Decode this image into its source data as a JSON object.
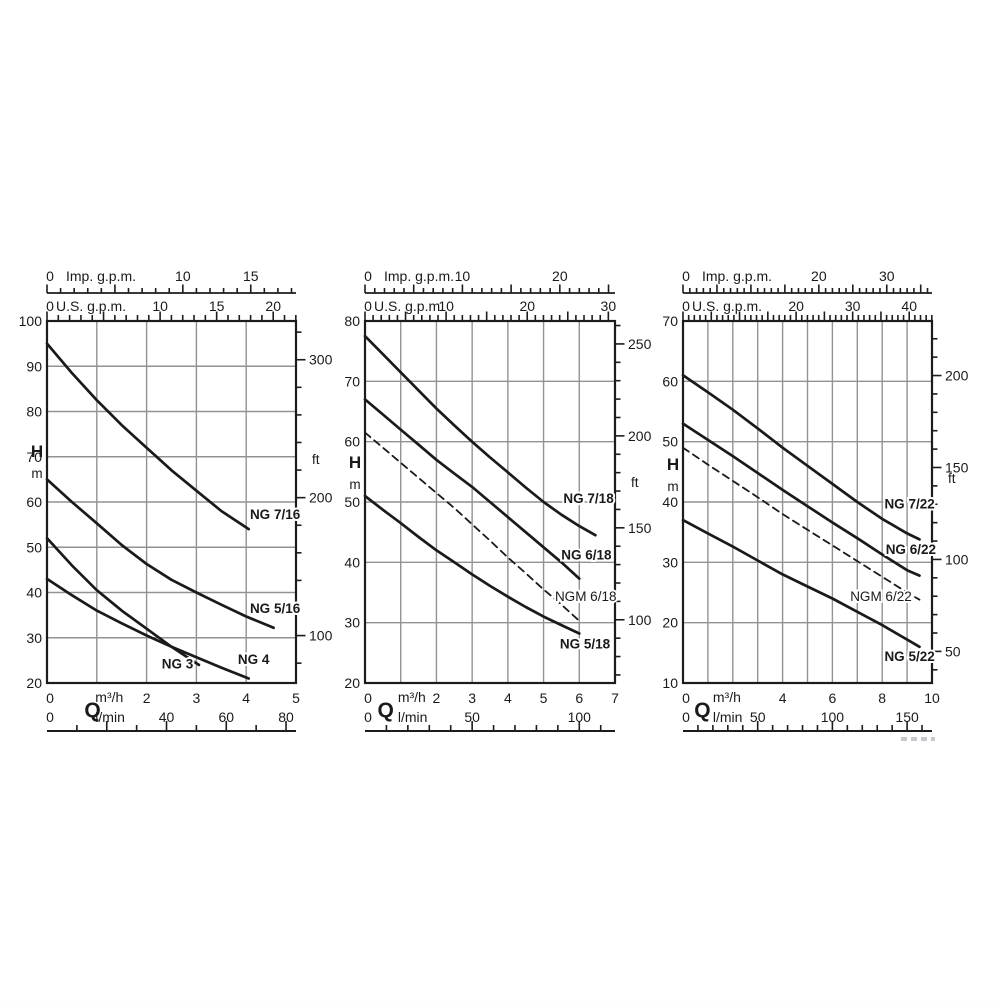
{
  "colors": {
    "curve": "#1a1a1a",
    "grid": "#929292",
    "axis": "#1c1c1c",
    "text": "#1a1a1a"
  },
  "chart_data": [
    {
      "type": "line",
      "title": "",
      "x_axis": {
        "label": "Q",
        "unit": "m³/h",
        "min": 0,
        "max": 5,
        "grid_step": 1,
        "tick_labels": [
          0,
          2,
          3,
          4,
          5
        ]
      },
      "x_axis_lmin": {
        "unit": "l/min",
        "tick_labels": [
          0,
          40,
          60,
          80
        ],
        "minor_step": 10,
        "major_step": 20
      },
      "x_axis_imp": {
        "title": "Imp. g.p.m.",
        "zero": "0",
        "tick_labels": [
          10,
          15
        ],
        "minor_step": 1,
        "major_step": 5
      },
      "x_axis_us": {
        "title": "U.S. g.p.m.",
        "zero": "0",
        "tick_labels": [
          10,
          15,
          20
        ],
        "minor_step": 1,
        "major_step": 5
      },
      "y_axis": {
        "label": "H",
        "unit": "m",
        "min": 20,
        "max": 100,
        "step": 10
      },
      "y_axis_ft": {
        "unit": "ft",
        "tick_labels": [
          300,
          200,
          100
        ],
        "minor_step": 20
      },
      "series": [
        {
          "name": "NG 7/16",
          "dashed": false,
          "label_at": [
            4.58,
            57.2
          ],
          "points": [
            [
              0,
              95
            ],
            [
              0.5,
              88.5
            ],
            [
              1,
              82.5
            ],
            [
              1.5,
              77
            ],
            [
              2,
              72
            ],
            [
              2.5,
              67
            ],
            [
              3,
              62.5
            ],
            [
              3.5,
              58
            ],
            [
              4.05,
              54
            ]
          ]
        },
        {
          "name": "NG 5/16",
          "dashed": false,
          "label_at": [
            4.58,
            36.5
          ],
          "points": [
            [
              0,
              65
            ],
            [
              0.5,
              60
            ],
            [
              1,
              55.3
            ],
            [
              1.5,
              50.5
            ],
            [
              2,
              46.3
            ],
            [
              2.5,
              42.8
            ],
            [
              3,
              40
            ],
            [
              3.5,
              37.3
            ],
            [
              4,
              34.7
            ],
            [
              4.55,
              32.2
            ]
          ]
        },
        {
          "name": "NG 3",
          "dashed": false,
          "label_at": [
            2.62,
            24.2
          ],
          "points": [
            [
              0,
              52
            ],
            [
              0.5,
              46
            ],
            [
              1,
              40.5
            ],
            [
              1.5,
              36
            ],
            [
              2,
              32
            ],
            [
              2.5,
              28
            ],
            [
              3.05,
              24
            ]
          ]
        },
        {
          "name": "NG 4",
          "dashed": false,
          "label_at": [
            4.15,
            25.2
          ],
          "points": [
            [
              0,
              43
            ],
            [
              0.5,
              39.4
            ],
            [
              1,
              36
            ],
            [
              1.5,
              33.2
            ],
            [
              2,
              30.5
            ],
            [
              2.5,
              28
            ],
            [
              3,
              25.7
            ],
            [
              3.5,
              23.4
            ],
            [
              4.05,
              21
            ]
          ]
        }
      ]
    },
    {
      "type": "line",
      "title": "",
      "x_axis": {
        "label": "Q",
        "unit": "m³/h",
        "min": 0,
        "max": 7,
        "grid_step": 1,
        "tick_labels": [
          0,
          2,
          3,
          4,
          5,
          6,
          7
        ]
      },
      "x_axis_lmin": {
        "unit": "l/min",
        "tick_labels": [
          0,
          50,
          100
        ],
        "minor_step": 10,
        "major_step": 50
      },
      "x_axis_imp": {
        "title": "Imp. g.p.m.",
        "zero": "0",
        "tick_labels": [
          10,
          20
        ],
        "minor_step": 1,
        "major_step": 5
      },
      "x_axis_us": {
        "title": "U.S. g.p.m.",
        "zero": "0",
        "tick_labels": [
          10,
          20,
          30
        ],
        "minor_step": 1,
        "major_step": 5
      },
      "y_axis": {
        "label": "H",
        "unit": "m",
        "min": 20,
        "max": 80,
        "step": 10
      },
      "y_axis_ft": {
        "unit": "ft",
        "tick_labels": [
          250,
          200,
          150,
          100
        ],
        "minor_step": 10
      },
      "series": [
        {
          "name": "NG 7/18",
          "dashed": false,
          "label_at": [
            6.26,
            50.6
          ],
          "points": [
            [
              0,
              77.5
            ],
            [
              0.5,
              74.5
            ],
            [
              1,
              71.5
            ],
            [
              1.5,
              68.5
            ],
            [
              2,
              65.5
            ],
            [
              2.5,
              62.7
            ],
            [
              3,
              60
            ],
            [
              3.5,
              57.4
            ],
            [
              4,
              54.9
            ],
            [
              4.5,
              52.4
            ],
            [
              5,
              50
            ],
            [
              5.5,
              47.9
            ],
            [
              6,
              46
            ],
            [
              6.45,
              44.5
            ]
          ]
        },
        {
          "name": "NG 6/18",
          "dashed": false,
          "label_at": [
            6.2,
            41.2
          ],
          "points": [
            [
              0,
              67
            ],
            [
              0.5,
              64.5
            ],
            [
              1,
              62
            ],
            [
              1.5,
              59.5
            ],
            [
              2,
              57
            ],
            [
              2.5,
              54.7
            ],
            [
              3,
              52.5
            ],
            [
              3.5,
              50
            ],
            [
              4,
              47.5
            ],
            [
              4.5,
              45
            ],
            [
              5,
              42.5
            ],
            [
              5.5,
              40
            ],
            [
              6,
              37.3
            ]
          ]
        },
        {
          "name": "NGM 6/18",
          "dashed": true,
          "label_at": [
            6.18,
            34.3
          ],
          "points": [
            [
              0,
              61.5
            ],
            [
              0.5,
              59
            ],
            [
              1,
              56.5
            ],
            [
              1.5,
              54
            ],
            [
              2,
              51.5
            ],
            [
              2.5,
              49
            ],
            [
              3,
              46.3
            ],
            [
              3.5,
              43.6
            ],
            [
              4,
              40.8
            ],
            [
              4.5,
              38.2
            ],
            [
              5,
              35.5
            ],
            [
              5.5,
              33
            ],
            [
              6,
              30.3
            ]
          ]
        },
        {
          "name": "NG 5/18",
          "dashed": false,
          "label_at": [
            6.16,
            26.5
          ],
          "points": [
            [
              0,
              51
            ],
            [
              0.5,
              48.7
            ],
            [
              1,
              46.5
            ],
            [
              1.5,
              44.2
            ],
            [
              2,
              42
            ],
            [
              2.5,
              40
            ],
            [
              3,
              38
            ],
            [
              3.5,
              36.1
            ],
            [
              4,
              34.3
            ],
            [
              4.5,
              32.6
            ],
            [
              5,
              31
            ],
            [
              5.5,
              29.6
            ],
            [
              6,
              28.2
            ]
          ]
        }
      ]
    },
    {
      "type": "line",
      "title": "",
      "x_axis": {
        "label": "Q",
        "unit": "m³/h",
        "min": 0,
        "max": 10,
        "grid_step": 1,
        "tick_labels": [
          0,
          4,
          6,
          8,
          10
        ]
      },
      "x_axis_lmin": {
        "unit": "l/min",
        "tick_labels": [
          0,
          50,
          100,
          150
        ],
        "minor_step": 10,
        "major_step": 50
      },
      "x_axis_imp": {
        "title": "Imp. g.p.m.",
        "zero": "0",
        "tick_labels": [
          20,
          30
        ],
        "minor_step": 1,
        "major_step": 5
      },
      "x_axis_us": {
        "title": "U.S. g.p.m.",
        "zero": "0",
        "tick_labels": [
          20,
          30,
          40
        ],
        "minor_step": 1,
        "major_step": 5
      },
      "y_axis": {
        "label": "H",
        "unit": "m",
        "min": 10,
        "max": 70,
        "step": 10
      },
      "y_axis_ft": {
        "unit": "ft",
        "tick_labels": [
          200,
          150,
          100,
          50
        ],
        "minor_step": 10
      },
      "series": [
        {
          "name": "NG 7/22",
          "dashed": false,
          "label_at": [
            9.1,
            39.7
          ],
          "points": [
            [
              0,
              61
            ],
            [
              1,
              58.2
            ],
            [
              2,
              55.3
            ],
            [
              3,
              52.2
            ],
            [
              4,
              49
            ],
            [
              5,
              46
            ],
            [
              6,
              43
            ],
            [
              7,
              40
            ],
            [
              8,
              37.2
            ],
            [
              9,
              34.8
            ],
            [
              9.5,
              33.8
            ]
          ]
        },
        {
          "name": "NG 6/22",
          "dashed": false,
          "label_at": [
            9.15,
            32.1
          ],
          "points": [
            [
              0,
              53
            ],
            [
              1,
              50.3
            ],
            [
              2,
              47.6
            ],
            [
              3,
              44.8
            ],
            [
              4,
              42
            ],
            [
              5,
              39.3
            ],
            [
              6,
              36.6
            ],
            [
              7,
              34
            ],
            [
              8,
              31.3
            ],
            [
              9,
              28.7
            ],
            [
              9.5,
              27.8
            ]
          ]
        },
        {
          "name": "NGM 6/22",
          "dashed": true,
          "label_at": [
            7.95,
            24.3
          ],
          "points": [
            [
              0,
              49
            ],
            [
              1,
              46.2
            ],
            [
              2,
              43.5
            ],
            [
              3,
              40.8
            ],
            [
              4,
              38
            ],
            [
              5,
              35.4
            ],
            [
              6,
              32.8
            ],
            [
              7,
              30.2
            ],
            [
              8,
              27.6
            ],
            [
              9,
              25
            ],
            [
              9.5,
              23.8
            ]
          ]
        },
        {
          "name": "NG 5/22",
          "dashed": false,
          "label_at": [
            9.1,
            14.4
          ],
          "points": [
            [
              0,
              37
            ],
            [
              1,
              34.8
            ],
            [
              2,
              32.6
            ],
            [
              3,
              30.3
            ],
            [
              4,
              28
            ],
            [
              5,
              26
            ],
            [
              6,
              24
            ],
            [
              7,
              21.8
            ],
            [
              8,
              19.6
            ],
            [
              9,
              17.2
            ],
            [
              9.5,
              16
            ]
          ]
        }
      ]
    }
  ]
}
